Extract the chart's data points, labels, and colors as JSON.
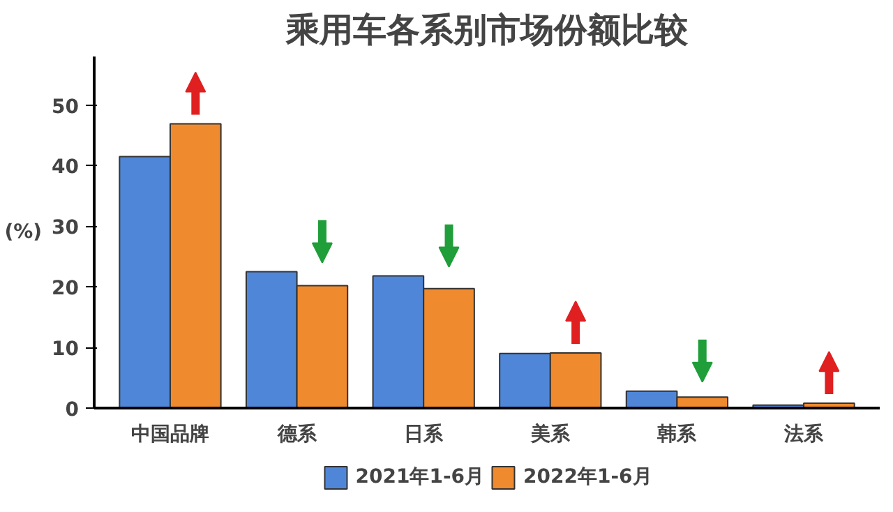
{
  "chart_data": {
    "type": "bar",
    "title": "乘用车各系别市场份额比较",
    "ylabel": "(%)",
    "categories": [
      "中国品牌",
      "德系",
      "日系",
      "美系",
      "韩系",
      "法系"
    ],
    "series": [
      {
        "name": "2021年1-6月",
        "color": "#4f86d8",
        "values": [
          41.5,
          22.5,
          21.8,
          9.0,
          2.8,
          0.5
        ]
      },
      {
        "name": "2022年1-6月",
        "color": "#ef8a2e",
        "values": [
          46.9,
          20.2,
          19.7,
          9.1,
          1.8,
          0.8
        ]
      }
    ],
    "ylim": [
      0,
      58
    ],
    "yticks": [
      0,
      10,
      20,
      30,
      40,
      50
    ],
    "grid": false,
    "legend": "bottom"
  }
}
